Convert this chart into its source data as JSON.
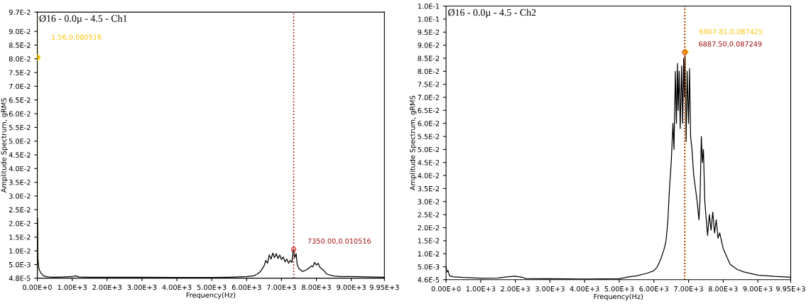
{
  "chart_data": [
    {
      "type": "line",
      "title": "Ø16 - 0.0µ - 4.5 - Ch1",
      "xlabel": "Frequency(Hz)",
      "ylabel": "Amplitude Spectrum, gRMS",
      "grid": false,
      "legend": false,
      "marker": "none",
      "line_style": "solid",
      "xlim": [
        0,
        9950
      ],
      "xticks": [
        {
          "value": 0,
          "label": "0.00E+0"
        },
        {
          "value": 1000,
          "label": "1.00E+3"
        },
        {
          "value": 2000,
          "label": "2.00E+3"
        },
        {
          "value": 3000,
          "label": "3.00E+3"
        },
        {
          "value": 4000,
          "label": "4.00E+3"
        },
        {
          "value": 5000,
          "label": "5.00E+3"
        },
        {
          "value": 6000,
          "label": "6.00E+3"
        },
        {
          "value": 7000,
          "label": "7.00E+3"
        },
        {
          "value": 8000,
          "label": "8.00E+3"
        },
        {
          "value": 9000,
          "label": "9.00E+3"
        },
        {
          "value": 9950,
          "label": "9.95E+3"
        }
      ],
      "ylim": [
        4.8e-05,
        0.097
      ],
      "yticks": [
        {
          "value": 4.8e-05,
          "label": "4.8E-5"
        },
        {
          "value": 0.005,
          "label": "5.0E-3"
        },
        {
          "value": 0.01,
          "label": "1.0E-2"
        },
        {
          "value": 0.015,
          "label": "1.5E-2"
        },
        {
          "value": 0.02,
          "label": "2.0E-2"
        },
        {
          "value": 0.025,
          "label": "2.5E-2"
        },
        {
          "value": 0.03,
          "label": "3.0E-2"
        },
        {
          "value": 0.035,
          "label": "3.5E-2"
        },
        {
          "value": 0.04,
          "label": "4.0E-2"
        },
        {
          "value": 0.045,
          "label": "4.5E-2"
        },
        {
          "value": 0.05,
          "label": "5.0E-2"
        },
        {
          "value": 0.055,
          "label": "5.5E-2"
        },
        {
          "value": 0.06,
          "label": "6.0E-2"
        },
        {
          "value": 0.065,
          "label": "6.5E-2"
        },
        {
          "value": 0.07,
          "label": "7.0E-2"
        },
        {
          "value": 0.075,
          "label": "7.5E-2"
        },
        {
          "value": 0.08,
          "label": "8.0E-2"
        },
        {
          "value": 0.085,
          "label": "8.5E-2"
        },
        {
          "value": 0.09,
          "label": "9.0E-2"
        },
        {
          "value": 0.097,
          "label": "9.7E-2"
        }
      ],
      "ref_lines": [
        {
          "axis": "x",
          "value": 1.56,
          "color": "#f5c400",
          "line_style": "dotted"
        },
        {
          "axis": "x",
          "value": 7350,
          "color": "#a01010",
          "line_style": "dotted"
        }
      ],
      "annotations": [
        "1.56,0.080516",
        "7350.00,0.010516"
      ],
      "series": [
        {
          "color": "#000000",
          "x": [
            0,
            10,
            20,
            40,
            60,
            100,
            150,
            200,
            300,
            500,
            800,
            1000,
            1100,
            1200,
            1500,
            2000,
            3000,
            4000,
            5000,
            5500,
            6000,
            6200,
            6300,
            6400,
            6500,
            6550,
            6600,
            6650,
            6700,
            6750,
            6800,
            6850,
            6900,
            6950,
            7000,
            7050,
            7100,
            7150,
            7200,
            7250,
            7300,
            7330,
            7350,
            7380,
            7420,
            7450,
            7500,
            7600,
            7700,
            7800,
            7850,
            7900,
            7950,
            8000,
            8050,
            8100,
            8200,
            8300,
            8500,
            8700,
            9000,
            9500,
            9950
          ],
          "values": [
            0.0005,
            0.022,
            0.007,
            0.004,
            0.003,
            0.002,
            0.0012,
            0.0008,
            0.0005,
            0.0004,
            0.0005,
            0.0006,
            0.0009,
            0.0005,
            0.0004,
            0.0004,
            0.0004,
            0.0003,
            0.0003,
            0.0004,
            0.0006,
            0.0009,
            0.0015,
            0.0025,
            0.0045,
            0.0065,
            0.0055,
            0.0085,
            0.007,
            0.0092,
            0.0075,
            0.009,
            0.0072,
            0.0085,
            0.0068,
            0.0078,
            0.006,
            0.007,
            0.0055,
            0.0065,
            0.0058,
            0.01,
            0.0105,
            0.0075,
            0.009,
            0.005,
            0.0035,
            0.0025,
            0.003,
            0.0038,
            0.0045,
            0.0042,
            0.0058,
            0.0048,
            0.0055,
            0.004,
            0.003,
            0.0015,
            0.0008,
            0.0006,
            0.0006,
            0.0005,
            0.0004
          ]
        },
        {
          "type": "scatter",
          "marker": "diamond",
          "color": "#f5c400",
          "x": [
            1.56
          ],
          "values": [
            0.080516
          ]
        },
        {
          "type": "scatter",
          "marker": "circle",
          "color": "#e03030",
          "x": [
            7350
          ],
          "values": [
            0.010516
          ]
        }
      ]
    },
    {
      "type": "line",
      "title": "Ø16 - 0.0µ - 4.5 - Ch2",
      "xlabel": "Frequency(Hz)",
      "ylabel": "Amplitude Spectrum, gRMS",
      "grid": false,
      "legend": false,
      "marker": "none",
      "line_style": "solid",
      "xlim": [
        0,
        9950
      ],
      "xticks": [
        {
          "value": 0,
          "label": "0.00E+0"
        },
        {
          "value": 1000,
          "label": "1.00E+3"
        },
        {
          "value": 2000,
          "label": "2.00E+3"
        },
        {
          "value": 3000,
          "label": "3.00E+3"
        },
        {
          "value": 4000,
          "label": "4.00E+3"
        },
        {
          "value": 5000,
          "label": "5.00E+3"
        },
        {
          "value": 6000,
          "label": "6.00E+3"
        },
        {
          "value": 7000,
          "label": "7.00E+3"
        },
        {
          "value": 8000,
          "label": "8.00E+3"
        },
        {
          "value": 9000,
          "label": "9.00E+3"
        },
        {
          "value": 9950,
          "label": "9.95E+3"
        }
      ],
      "ylim": [
        4.6e-05,
        0.105
      ],
      "yticks": [
        {
          "value": 4.6e-05,
          "label": "4.6E-5"
        },
        {
          "value": 0.005,
          "label": "5.0E-3"
        },
        {
          "value": 0.01,
          "label": "1.0E-2"
        },
        {
          "value": 0.015,
          "label": "1.5E-2"
        },
        {
          "value": 0.02,
          "label": "2.0E-2"
        },
        {
          "value": 0.025,
          "label": "2.5E-2"
        },
        {
          "value": 0.03,
          "label": "3.0E-2"
        },
        {
          "value": 0.035,
          "label": "3.5E-2"
        },
        {
          "value": 0.04,
          "label": "4.0E-2"
        },
        {
          "value": 0.045,
          "label": "4.5E-2"
        },
        {
          "value": 0.05,
          "label": "5.0E-2"
        },
        {
          "value": 0.055,
          "label": "5.5E-2"
        },
        {
          "value": 0.06,
          "label": "6.0E-2"
        },
        {
          "value": 0.065,
          "label": "6.5E-2"
        },
        {
          "value": 0.07,
          "label": "7.0E-2"
        },
        {
          "value": 0.075,
          "label": "7.5E-2"
        },
        {
          "value": 0.08,
          "label": "8.0E-2"
        },
        {
          "value": 0.085,
          "label": "8.5E-2"
        },
        {
          "value": 0.09,
          "label": "9.0E-2"
        },
        {
          "value": 0.095,
          "label": "9.5E-2"
        },
        {
          "value": 0.1,
          "label": "1.0E-1"
        },
        {
          "value": 0.105,
          "label": "1.0E-1"
        }
      ],
      "ref_lines": [
        {
          "axis": "x",
          "value": 6907.81,
          "color": "#f5c400",
          "line_style": "dotted"
        },
        {
          "axis": "x",
          "value": 6887.5,
          "color": "#a01010",
          "line_style": "dotted"
        }
      ],
      "annotations": [
        "6907.81,0.087425",
        "6887.50,0.087249"
      ],
      "series": [
        {
          "color": "#000000",
          "x": [
            0,
            30,
            60,
            100,
            200,
            500,
            1000,
            1500,
            1800,
            2000,
            2200,
            2300,
            3000,
            4000,
            5000,
            5300,
            5500,
            5800,
            6000,
            6100,
            6200,
            6300,
            6350,
            6400,
            6450,
            6500,
            6550,
            6580,
            6620,
            6650,
            6680,
            6700,
            6730,
            6760,
            6800,
            6830,
            6860,
            6880,
            6900,
            6930,
            6960,
            7000,
            7030,
            7060,
            7100,
            7150,
            7200,
            7250,
            7300,
            7330,
            7370,
            7400,
            7430,
            7470,
            7500,
            7550,
            7600,
            7650,
            7700,
            7750,
            7800,
            7850,
            7900,
            8000,
            8100,
            8200,
            8400,
            8600,
            9000,
            9500,
            9950
          ],
          "values": [
            0.005,
            0.003,
            0.0035,
            0.0015,
            0.0012,
            0.0009,
            0.0006,
            0.0007,
            0.0012,
            0.0014,
            0.001,
            0.0005,
            0.0004,
            0.0003,
            0.0004,
            0.0012,
            0.0015,
            0.0025,
            0.0035,
            0.005,
            0.008,
            0.012,
            0.015,
            0.022,
            0.035,
            0.045,
            0.06,
            0.05,
            0.08,
            0.06,
            0.083,
            0.065,
            0.08,
            0.058,
            0.082,
            0.06,
            0.085,
            0.07,
            0.087,
            0.053,
            0.08,
            0.06,
            0.081,
            0.055,
            0.05,
            0.04,
            0.035,
            0.03,
            0.023,
            0.03,
            0.055,
            0.045,
            0.05,
            0.03,
            0.025,
            0.017,
            0.025,
            0.019,
            0.026,
            0.018,
            0.023,
            0.016,
            0.018,
            0.012,
            0.009,
            0.006,
            0.004,
            0.003,
            0.0018,
            0.0013,
            0.001
          ]
        },
        {
          "type": "scatter",
          "marker": "diamond",
          "color": "#f5c400",
          "x": [
            6907.81
          ],
          "values": [
            0.087425
          ]
        },
        {
          "type": "scatter",
          "marker": "circle",
          "color": "#e03030",
          "x": [
            6887.5
          ],
          "values": [
            0.087249
          ]
        }
      ]
    }
  ]
}
